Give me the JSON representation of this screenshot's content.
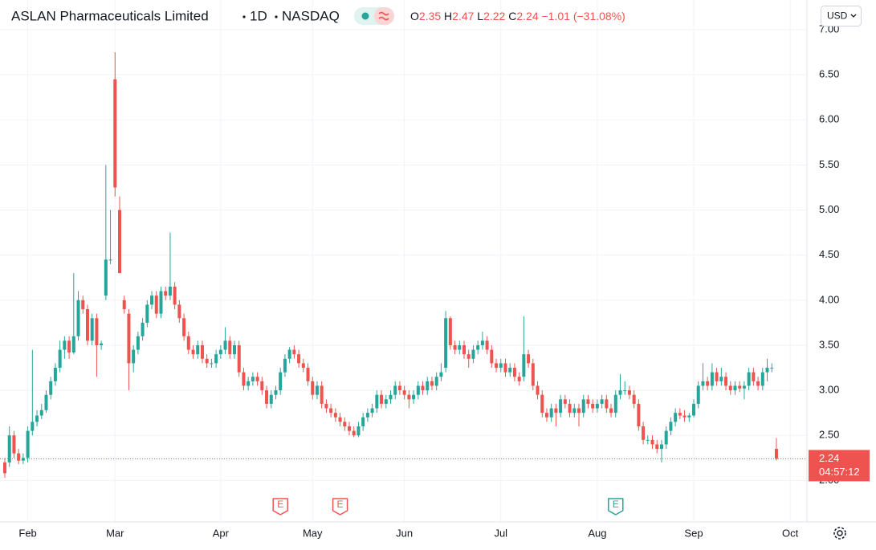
{
  "chart_data": {
    "type": "candlestick",
    "title": "ASLAN Pharmaceuticals Limited",
    "interval": "1D",
    "exchange": "NASDAQ",
    "currency": "USD",
    "legend": {
      "o_label": "O",
      "open": 2.35,
      "h_label": "H",
      "high": 2.47,
      "l_label": "L",
      "low": 2.22,
      "c_label": "C",
      "close": 2.24,
      "change": {
        "value": -1.01,
        "label": "−1.01"
      },
      "change_pct": {
        "value": -31.08,
        "label": "(−31.08%)"
      }
    },
    "last_price": 2.24,
    "countdown": "04:57:12",
    "up_color": "#26a69a",
    "down_color": "#ef5350",
    "grid": true,
    "xlim": [
      -1.05,
      174.65
    ],
    "xticks": [
      {
        "value": 5,
        "label": "Feb"
      },
      {
        "value": 24,
        "label": "Mar"
      },
      {
        "value": 47,
        "label": "Apr"
      },
      {
        "value": 67,
        "label": "May"
      },
      {
        "value": 87,
        "label": "Jun"
      },
      {
        "value": 108,
        "label": "Jul"
      },
      {
        "value": 129,
        "label": "Aug"
      },
      {
        "value": 150,
        "label": "Sep"
      },
      {
        "value": 171,
        "label": "Oct"
      }
    ],
    "ylim": [
      1.54,
      7.33
    ],
    "yticks": [
      {
        "value": 2,
        "label": "2.00"
      },
      {
        "value": 2.5,
        "label": "2.50"
      },
      {
        "value": 3,
        "label": "3.00"
      },
      {
        "value": 3.5,
        "label": "3.50"
      },
      {
        "value": 4,
        "label": "4.00"
      },
      {
        "value": 4.5,
        "label": "4.50"
      },
      {
        "value": 5,
        "label": "5.00"
      },
      {
        "value": 5.5,
        "label": "5.50"
      },
      {
        "value": 6,
        "label": "6.00"
      },
      {
        "value": 6.5,
        "label": "6.50"
      },
      {
        "value": 7,
        "label": "7.00"
      }
    ],
    "events": [
      {
        "label": "E",
        "index": 60,
        "color": "#ef5350"
      },
      {
        "label": "E",
        "index": 73,
        "color": "#ef5350"
      },
      {
        "label": "E",
        "index": 133,
        "color": "#26a69a"
      }
    ],
    "open": [
      2.2,
      2.2,
      2.5,
      2.3,
      2.22,
      2.25,
      2.55,
      2.65,
      2.72,
      2.78,
      2.95,
      3.1,
      3.25,
      3.45,
      3.55,
      3.42,
      3.6,
      4.0,
      3.9,
      3.55,
      3.8,
      3.5,
      4.05,
      4.45,
      6.45,
      5.0,
      4.0,
      3.85,
      3.3,
      3.45,
      3.6,
      3.75,
      3.95,
      4.05,
      3.85,
      4.1,
      4.05,
      4.15,
      3.95,
      3.8,
      3.6,
      3.45,
      3.4,
      3.5,
      3.35,
      3.3,
      3.3,
      3.4,
      3.45,
      3.55,
      3.4,
      3.5,
      3.2,
      3.05,
      3.1,
      3.15,
      3.1,
      3.0,
      2.85,
      2.95,
      3.0,
      3.2,
      3.35,
      3.45,
      3.4,
      3.3,
      3.25,
      3.1,
      2.95,
      3.05,
      2.85,
      2.8,
      2.75,
      2.7,
      2.65,
      2.6,
      2.55,
      2.5,
      2.6,
      2.7,
      2.75,
      2.8,
      2.95,
      2.85,
      2.9,
      2.95,
      3.05,
      3.0,
      2.95,
      2.9,
      2.95,
      3.05,
      3.0,
      3.1,
      3.05,
      3.15,
      3.25,
      3.8,
      3.5,
      3.45,
      3.5,
      3.4,
      3.35,
      3.45,
      3.5,
      3.55,
      3.45,
      3.3,
      3.25,
      3.3,
      3.2,
      3.25,
      3.15,
      3.15,
      3.4,
      3.3,
      3.05,
      2.95,
      2.75,
      2.7,
      2.8,
      2.75,
      2.9,
      2.85,
      2.75,
      2.8,
      2.75,
      2.9,
      2.85,
      2.8,
      2.85,
      2.9,
      2.8,
      2.75,
      2.95,
      3.0,
      3.0,
      2.95,
      2.85,
      2.6,
      2.45,
      2.45,
      2.4,
      2.35,
      2.4,
      2.55,
      2.65,
      2.75,
      2.72,
      2.7,
      2.72,
      2.85,
      3.05,
      3.1,
      3.05,
      3.2,
      3.1,
      3.15,
      3.05,
      3.0,
      3.05,
      3.02,
      3.05,
      3.2,
      3.1,
      3.05,
      3.2,
      3.25,
      2.35
    ],
    "high": [
      2.25,
      2.6,
      2.55,
      2.35,
      2.3,
      2.6,
      3.45,
      2.78,
      2.85,
      3.0,
      3.15,
      3.3,
      3.55,
      3.6,
      3.6,
      4.3,
      4.1,
      4.05,
      3.95,
      3.85,
      3.85,
      3.55,
      5.5,
      5.0,
      6.75,
      5.15,
      4.05,
      3.9,
      3.5,
      3.65,
      3.8,
      4.0,
      4.1,
      4.1,
      4.15,
      4.15,
      4.75,
      4.2,
      4.0,
      3.85,
      3.65,
      3.5,
      3.55,
      3.55,
      3.4,
      3.35,
      3.45,
      3.5,
      3.7,
      3.6,
      3.55,
      3.55,
      3.25,
      3.15,
      3.2,
      3.2,
      3.15,
      3.05,
      3.0,
      3.05,
      3.25,
      3.4,
      3.48,
      3.5,
      3.45,
      3.35,
      3.3,
      3.15,
      3.1,
      3.1,
      2.9,
      2.85,
      2.8,
      2.75,
      2.7,
      2.65,
      2.6,
      2.65,
      2.75,
      2.8,
      2.85,
      3.0,
      3.0,
      2.95,
      3.0,
      3.1,
      3.1,
      3.05,
      3.0,
      3.0,
      3.1,
      3.1,
      3.15,
      3.15,
      3.2,
      3.3,
      3.88,
      3.82,
      3.55,
      3.55,
      3.55,
      3.45,
      3.5,
      3.55,
      3.65,
      3.6,
      3.5,
      3.35,
      3.35,
      3.35,
      3.3,
      3.3,
      3.2,
      3.82,
      3.45,
      3.35,
      3.1,
      3.0,
      2.8,
      2.85,
      2.85,
      2.95,
      2.95,
      2.9,
      2.85,
      2.85,
      2.95,
      2.95,
      2.9,
      2.9,
      2.95,
      2.95,
      2.85,
      3.0,
      3.18,
      3.1,
      3.05,
      3.0,
      2.9,
      2.65,
      2.5,
      2.5,
      2.45,
      2.45,
      2.6,
      2.7,
      2.8,
      2.8,
      2.78,
      2.75,
      2.9,
      3.1,
      3.3,
      3.15,
      3.3,
      3.25,
      3.25,
      3.2,
      3.1,
      3.1,
      3.1,
      3.1,
      3.25,
      3.25,
      3.15,
      3.25,
      3.35,
      3.3,
      2.47
    ],
    "low": [
      2.03,
      2.15,
      2.25,
      2.18,
      2.18,
      2.2,
      2.5,
      2.6,
      2.68,
      2.75,
      2.9,
      3.05,
      3.2,
      3.35,
      3.35,
      3.4,
      3.55,
      3.85,
      3.5,
      3.5,
      3.15,
      3.45,
      4.0,
      4.4,
      5.15,
      4.3,
      3.85,
      3.0,
      3.2,
      3.4,
      3.55,
      3.7,
      3.9,
      3.8,
      3.8,
      4.0,
      4.0,
      3.9,
      3.75,
      3.55,
      3.4,
      3.35,
      3.35,
      3.3,
      3.25,
      3.25,
      3.25,
      3.35,
      3.4,
      3.35,
      3.35,
      3.15,
      3.0,
      3.0,
      3.05,
      3.05,
      2.95,
      2.8,
      2.8,
      2.9,
      2.95,
      3.15,
      3.3,
      3.35,
      3.25,
      3.2,
      3.05,
      2.9,
      2.9,
      2.8,
      2.75,
      2.7,
      2.65,
      2.6,
      2.55,
      2.5,
      2.48,
      2.48,
      2.55,
      2.65,
      2.7,
      2.75,
      2.8,
      2.8,
      2.85,
      2.9,
      2.95,
      2.9,
      2.8,
      2.85,
      2.9,
      2.95,
      2.95,
      3.0,
      3.0,
      3.1,
      3.2,
      3.45,
      3.4,
      3.4,
      3.35,
      3.25,
      3.3,
      3.4,
      3.45,
      3.4,
      3.25,
      3.2,
      3.2,
      3.15,
      3.15,
      3.1,
      3.05,
      3.1,
      3.25,
      3.0,
      2.9,
      2.7,
      2.65,
      2.65,
      2.6,
      2.7,
      2.8,
      2.7,
      2.7,
      2.6,
      2.7,
      2.8,
      2.75,
      2.75,
      2.8,
      2.75,
      2.7,
      2.7,
      2.9,
      2.95,
      2.9,
      2.8,
      2.55,
      2.4,
      2.4,
      2.35,
      2.3,
      2.2,
      2.35,
      2.5,
      2.6,
      2.68,
      2.65,
      2.65,
      2.7,
      2.8,
      3.0,
      3.0,
      3.0,
      3.05,
      3.05,
      3.0,
      2.95,
      2.95,
      2.98,
      2.9,
      3.0,
      3.05,
      3.0,
      3.0,
      3.1,
      3.2,
      2.22
    ],
    "close": [
      2.08,
      2.5,
      2.3,
      2.22,
      2.25,
      2.55,
      2.65,
      2.72,
      2.78,
      2.95,
      3.1,
      3.25,
      3.45,
      3.55,
      3.42,
      3.6,
      4.0,
      3.9,
      3.55,
      3.8,
      3.5,
      3.52,
      4.45,
      4.45,
      5.25,
      4.3,
      3.9,
      3.3,
      3.45,
      3.6,
      3.75,
      3.95,
      4.05,
      3.85,
      4.1,
      4.05,
      4.15,
      3.95,
      3.8,
      3.6,
      3.45,
      3.4,
      3.5,
      3.35,
      3.3,
      3.3,
      3.4,
      3.45,
      3.55,
      3.4,
      3.5,
      3.2,
      3.05,
      3.1,
      3.15,
      3.1,
      3.0,
      2.85,
      2.95,
      3.0,
      3.2,
      3.35,
      3.45,
      3.4,
      3.3,
      3.25,
      3.1,
      2.95,
      3.05,
      2.85,
      2.8,
      2.75,
      2.7,
      2.65,
      2.6,
      2.55,
      2.5,
      2.6,
      2.7,
      2.75,
      2.8,
      2.95,
      2.85,
      2.9,
      2.95,
      3.05,
      3.0,
      2.95,
      2.9,
      2.95,
      3.05,
      3.0,
      3.1,
      3.05,
      3.15,
      3.2,
      3.8,
      3.5,
      3.45,
      3.5,
      3.4,
      3.35,
      3.45,
      3.5,
      3.55,
      3.45,
      3.3,
      3.25,
      3.3,
      3.2,
      3.25,
      3.15,
      3.1,
      3.4,
      3.3,
      3.05,
      2.95,
      2.75,
      2.7,
      2.8,
      2.75,
      2.9,
      2.85,
      2.75,
      2.8,
      2.75,
      2.9,
      2.85,
      2.8,
      2.85,
      2.9,
      2.8,
      2.75,
      2.95,
      3.0,
      3.0,
      2.95,
      2.85,
      2.6,
      2.45,
      2.45,
      2.4,
      2.35,
      2.4,
      2.55,
      2.65,
      2.75,
      2.72,
      2.7,
      2.72,
      2.85,
      3.05,
      3.1,
      3.05,
      3.2,
      3.1,
      3.15,
      3.05,
      3.0,
      3.05,
      3.02,
      3.05,
      3.2,
      3.1,
      3.05,
      3.2,
      3.25,
      3.25,
      2.24
    ]
  }
}
